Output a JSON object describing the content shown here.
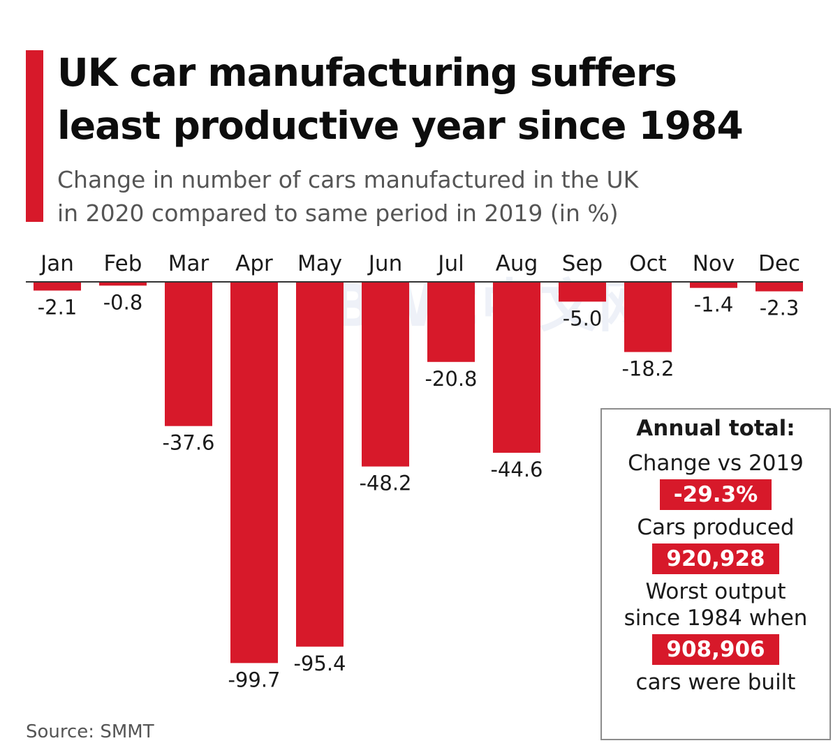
{
  "header": {
    "title": "UK car manufacturing suffers\nleast productive year since 1984",
    "subtitle": "Change in number of cars manufactured in the UK\nin 2020 compared to same period in 2019 (in %)",
    "accent_color": "#d7192a"
  },
  "chart_data": {
    "type": "bar",
    "title": "UK car manufacturing suffers least productive year since 1984",
    "subtitle": "Change in number of cars manufactured in the UK in 2020 compared to same period in 2019 (in %)",
    "categories": [
      "Jan",
      "Feb",
      "Mar",
      "Apr",
      "May",
      "Jun",
      "Jul",
      "Aug",
      "Sep",
      "Oct",
      "Nov",
      "Dec"
    ],
    "values": [
      -2.1,
      -0.8,
      -37.6,
      -99.7,
      -95.4,
      -48.2,
      -20.8,
      -44.6,
      -5.0,
      -18.2,
      -1.4,
      -2.3
    ],
    "value_labels": [
      "-2.1",
      "-0.8",
      "-37.6",
      "-99.7",
      "-95.4",
      "-48.2",
      "-20.8",
      "-44.6",
      "-5.0",
      "-18.2",
      "-1.4",
      "-2.3"
    ],
    "ylim": [
      -100,
      0
    ],
    "bar_color": "#d7192a",
    "category_axis_position": "top",
    "grid": false,
    "legend": "none"
  },
  "annual_total": {
    "heading": "Annual total:",
    "change_label": "Change vs 2019",
    "change_value": "-29.3%",
    "produced_label": "Cars produced",
    "produced_value": "920,928",
    "worst_label_1": "Worst output",
    "worst_label_2": "since 1984 when",
    "worst_value": "908,906",
    "worst_label_3": "cars were built"
  },
  "watermark": "BWC中文网",
  "source": "Source: SMMT"
}
